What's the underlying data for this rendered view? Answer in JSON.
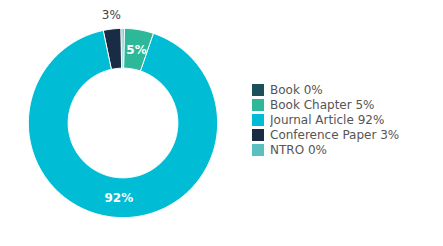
{
  "chart_data": {
    "type": "pie",
    "categories": [
      "Book 0%",
      "Book Chapter 5%",
      "Journal Article 92%",
      "Conference Paper 3%",
      "NTRO 0%"
    ],
    "values": [
      0.3,
      5,
      92,
      3,
      0.3
    ],
    "colors": [
      "#1c4f5a",
      "#2db89a",
      "#00bcd4",
      "#1a2b45",
      "#5bbfbf"
    ],
    "data_labels": true,
    "value_labels": [
      null,
      "5%",
      "92%",
      "3%",
      null
    ],
    "legend": "right"
  }
}
